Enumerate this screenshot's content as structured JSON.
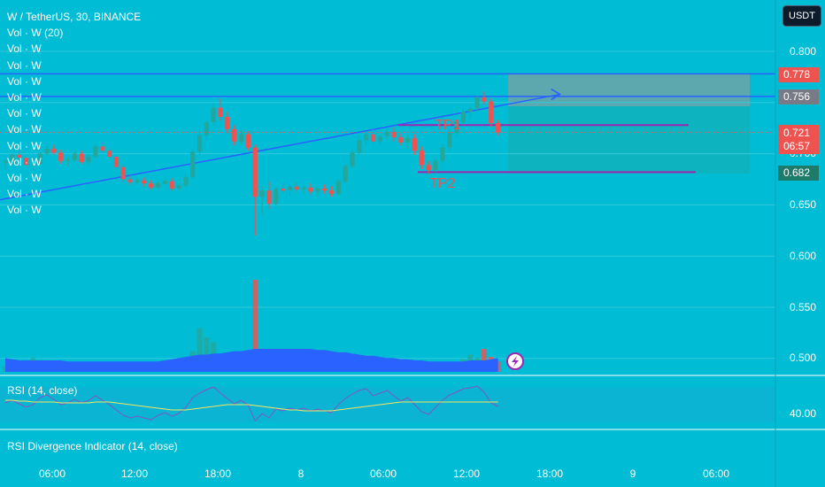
{
  "header": {
    "symbol_line": "W / TetherUS, 30, BINANCE",
    "indicator_lines": [
      "Vol · W (20)",
      "Vol · W",
      "Vol · W",
      "Vol · W",
      "Vol · W",
      "Vol · W",
      "Vol · W",
      "Vol · W",
      "Vol · W",
      "Vol · W",
      "Vol · W",
      "Vol · W"
    ]
  },
  "currency_button": "USDT",
  "price_axis": {
    "ticks": [
      "0.800",
      "0.750",
      "0.700",
      "0.650",
      "0.600",
      "0.550",
      "0.500"
    ],
    "labels": {
      "upper": "0.778",
      "entry": "0.756",
      "current": "0.721",
      "countdown": "06:57",
      "lower": "0.682"
    }
  },
  "annotations": {
    "tp1": "TP1",
    "tp2": "TP2"
  },
  "rsi_pane": {
    "title": "RSI (14, close)",
    "tick": "40.00"
  },
  "divergence_pane": {
    "title": "RSI Divergence Indicator (14, close)"
  },
  "time_axis": [
    "06:00",
    "12:00",
    "18:00",
    "8",
    "06:00",
    "12:00",
    "18:00",
    "9",
    "06:00"
  ],
  "colors": {
    "background": "#00bcd4",
    "up": "#26a69a",
    "down": "#ef5350",
    "trend_line": "#2962ff",
    "tp_line": "#9c27b0",
    "volume_ma": "#2962ff",
    "rsi": "#7e57c2",
    "rsi_ma": "#f5e663"
  },
  "chart_data": {
    "type": "candlestick",
    "interval": "30",
    "ylim": [
      0.48,
      0.82
    ],
    "candles": [
      [
        0.691,
        0.696,
        0.685,
        0.693
      ],
      [
        0.693,
        0.701,
        0.69,
        0.699
      ],
      [
        0.699,
        0.703,
        0.694,
        0.696
      ],
      [
        0.696,
        0.699,
        0.686,
        0.689
      ],
      [
        0.689,
        0.693,
        0.684,
        0.69
      ],
      [
        0.69,
        0.702,
        0.688,
        0.7
      ],
      [
        0.7,
        0.708,
        0.698,
        0.705
      ],
      [
        0.705,
        0.709,
        0.699,
        0.701
      ],
      [
        0.701,
        0.704,
        0.69,
        0.693
      ],
      [
        0.693,
        0.697,
        0.688,
        0.694
      ],
      [
        0.694,
        0.702,
        0.692,
        0.7
      ],
      [
        0.7,
        0.703,
        0.69,
        0.692
      ],
      [
        0.692,
        0.7,
        0.689,
        0.697
      ],
      [
        0.697,
        0.709,
        0.695,
        0.707
      ],
      [
        0.707,
        0.711,
        0.701,
        0.703
      ],
      [
        0.703,
        0.706,
        0.694,
        0.697
      ],
      [
        0.697,
        0.699,
        0.684,
        0.687
      ],
      [
        0.687,
        0.69,
        0.672,
        0.675
      ],
      [
        0.675,
        0.679,
        0.669,
        0.672
      ],
      [
        0.672,
        0.676,
        0.669,
        0.674
      ],
      [
        0.674,
        0.677,
        0.668,
        0.671
      ],
      [
        0.671,
        0.674,
        0.665,
        0.667
      ],
      [
        0.667,
        0.673,
        0.666,
        0.671
      ],
      [
        0.671,
        0.675,
        0.67,
        0.673
      ],
      [
        0.673,
        0.676,
        0.664,
        0.666
      ],
      [
        0.666,
        0.671,
        0.664,
        0.669
      ],
      [
        0.669,
        0.679,
        0.667,
        0.677
      ],
      [
        0.677,
        0.705,
        0.675,
        0.702
      ],
      [
        0.702,
        0.723,
        0.698,
        0.718
      ],
      [
        0.718,
        0.733,
        0.714,
        0.731
      ],
      [
        0.731,
        0.749,
        0.727,
        0.745
      ],
      [
        0.745,
        0.754,
        0.732,
        0.736
      ],
      [
        0.736,
        0.741,
        0.72,
        0.724
      ],
      [
        0.724,
        0.728,
        0.708,
        0.712
      ],
      [
        0.712,
        0.723,
        0.709,
        0.719
      ],
      [
        0.719,
        0.722,
        0.703,
        0.706
      ],
      [
        0.706,
        0.709,
        0.62,
        0.658
      ],
      [
        0.658,
        0.668,
        0.64,
        0.664
      ],
      [
        0.664,
        0.673,
        0.646,
        0.651
      ],
      [
        0.651,
        0.668,
        0.649,
        0.666
      ],
      [
        0.666,
        0.671,
        0.66,
        0.664
      ],
      [
        0.664,
        0.67,
        0.658,
        0.668
      ],
      [
        0.668,
        0.672,
        0.662,
        0.665
      ],
      [
        0.665,
        0.669,
        0.661,
        0.667
      ],
      [
        0.667,
        0.671,
        0.66,
        0.663
      ],
      [
        0.663,
        0.668,
        0.659,
        0.666
      ],
      [
        0.666,
        0.67,
        0.661,
        0.664
      ],
      [
        0.664,
        0.668,
        0.658,
        0.661
      ],
      [
        0.661,
        0.675,
        0.659,
        0.673
      ],
      [
        0.673,
        0.69,
        0.671,
        0.688
      ],
      [
        0.688,
        0.704,
        0.686,
        0.701
      ],
      [
        0.701,
        0.716,
        0.699,
        0.713
      ],
      [
        0.713,
        0.722,
        0.709,
        0.719
      ],
      [
        0.719,
        0.724,
        0.708,
        0.712
      ],
      [
        0.712,
        0.72,
        0.708,
        0.717
      ],
      [
        0.717,
        0.724,
        0.713,
        0.721
      ],
      [
        0.721,
        0.726,
        0.712,
        0.716
      ],
      [
        0.716,
        0.72,
        0.708,
        0.711
      ],
      [
        0.711,
        0.718,
        0.705,
        0.715
      ],
      [
        0.715,
        0.719,
        0.699,
        0.703
      ],
      [
        0.703,
        0.707,
        0.685,
        0.689
      ],
      [
        0.689,
        0.693,
        0.68,
        0.684
      ],
      [
        0.684,
        0.696,
        0.682,
        0.693
      ],
      [
        0.693,
        0.709,
        0.69,
        0.706
      ],
      [
        0.706,
        0.724,
        0.703,
        0.72
      ],
      [
        0.72,
        0.735,
        0.716,
        0.731
      ],
      [
        0.731,
        0.744,
        0.728,
        0.741
      ],
      [
        0.741,
        0.747,
        0.735,
        0.744
      ],
      [
        0.744,
        0.757,
        0.741,
        0.755
      ],
      [
        0.755,
        0.761,
        0.748,
        0.751
      ],
      [
        0.751,
        0.754,
        0.726,
        0.73
      ],
      [
        0.73,
        0.733,
        0.718,
        0.721
      ]
    ],
    "volume": [
      5,
      6,
      4,
      9,
      12,
      7,
      5,
      6,
      5,
      4,
      5,
      4,
      5,
      6,
      5,
      4,
      6,
      5,
      4,
      5,
      4,
      5,
      6,
      5,
      4,
      5,
      8,
      18,
      38,
      30,
      26,
      9,
      6,
      5,
      7,
      8,
      80,
      14,
      9,
      6,
      5,
      4,
      4,
      5,
      5,
      4,
      4,
      5,
      4,
      5,
      6,
      5,
      5,
      6,
      5,
      4,
      4,
      5,
      6,
      5,
      4,
      4,
      5,
      5,
      7,
      9,
      11,
      15,
      12,
      20,
      13,
      9
    ],
    "volume_ma": [
      12,
      11,
      10,
      10,
      10,
      10,
      10,
      10,
      10,
      9,
      9,
      9,
      9,
      9,
      9,
      9,
      9,
      9,
      9,
      9,
      9,
      9,
      9,
      10,
      11,
      12,
      13,
      14,
      15,
      15,
      16,
      16,
      17,
      18,
      18,
      19,
      20,
      20,
      20,
      20,
      20,
      20,
      20,
      20,
      20,
      19,
      19,
      18,
      17,
      17,
      16,
      15,
      14,
      14,
      13,
      12,
      12,
      11,
      11,
      10,
      10,
      9,
      9,
      9,
      9,
      9,
      9,
      10,
      10,
      10,
      11,
      12
    ],
    "rsi": [
      52,
      55,
      51,
      47,
      50,
      58,
      61,
      56,
      50,
      52,
      56,
      52,
      55,
      60,
      55,
      50,
      44,
      38,
      35,
      37,
      35,
      33,
      38,
      41,
      37,
      40,
      47,
      58,
      63,
      67,
      70,
      63,
      57,
      51,
      55,
      49,
      32,
      40,
      35,
      45,
      43,
      46,
      44,
      46,
      43,
      45,
      43,
      41,
      50,
      57,
      62,
      66,
      68,
      60,
      63,
      66,
      60,
      54,
      58,
      50,
      42,
      39,
      47,
      55,
      61,
      64,
      68,
      69,
      71,
      64,
      52,
      48
    ],
    "rsi_ma": [
      55,
      55,
      54,
      54,
      53,
      53,
      53,
      53,
      52,
      52,
      52,
      52,
      52,
      53,
      53,
      53,
      52,
      51,
      50,
      49,
      48,
      47,
      46,
      45,
      44,
      44,
      44,
      45,
      46,
      47,
      48,
      49,
      50,
      50,
      50,
      50,
      49,
      48,
      47,
      46,
      45,
      44,
      44,
      43,
      43,
      43,
      43,
      43,
      44,
      45,
      46,
      47,
      48,
      49,
      50,
      51,
      52,
      53,
      53,
      53,
      53,
      53,
      53,
      53,
      53,
      53,
      53,
      53,
      53,
      53,
      53,
      53
    ],
    "levels": {
      "upper": 0.778,
      "entry": 0.756,
      "tp1": 0.728,
      "tp2": 0.682
    },
    "trend_line": [
      [
        0,
        0.655
      ],
      [
        71,
        0.758
      ]
    ]
  }
}
